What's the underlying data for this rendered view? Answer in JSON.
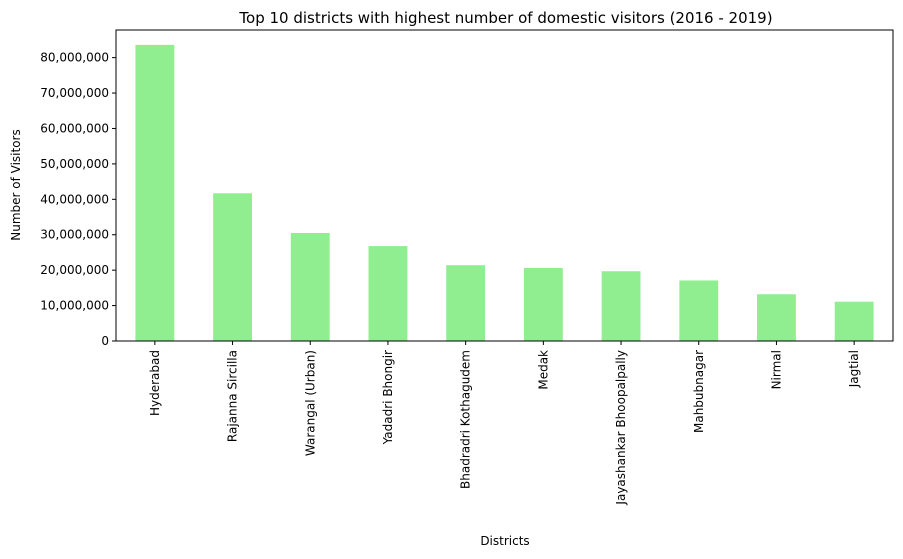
{
  "chart_data": {
    "type": "bar",
    "title": "Top 10 districts with highest number of domestic visitors (2016 - 2019)",
    "xlabel": "Districts",
    "ylabel": "Number of Visitors",
    "categories": [
      "Hyderabad",
      "Rajanna Sircilla",
      "Warangal (Urban)",
      "Yadadri Bhongir",
      "Bhadradri Kothagudem",
      "Medak",
      "Jayashankar Bhoopalpally",
      "Mahbubnagar",
      "Nirmal",
      "Jagtial"
    ],
    "values": [
      83600000,
      41700000,
      30500000,
      26800000,
      21400000,
      20600000,
      19700000,
      17100000,
      13200000,
      11100000
    ],
    "ylim": [
      0,
      87800000
    ],
    "yticks": [
      0,
      10000000,
      20000000,
      30000000,
      40000000,
      50000000,
      60000000,
      70000000,
      80000000
    ],
    "ytick_labels": [
      "0",
      "10,000,000",
      "20,000,000",
      "30,000,000",
      "40,000,000",
      "50,000,000",
      "60,000,000",
      "70,000,000",
      "80,000,000"
    ],
    "grid": false,
    "legend": "none",
    "bar_color": "#90ee90"
  }
}
